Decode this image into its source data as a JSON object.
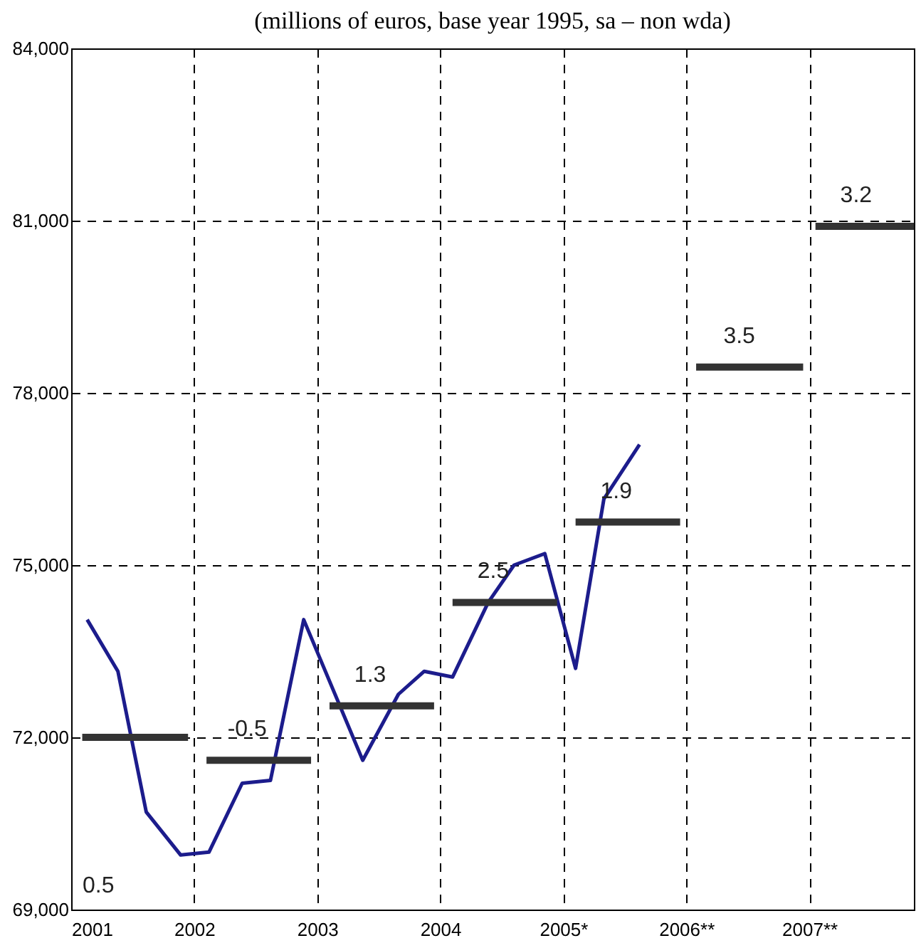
{
  "chart_data": {
    "type": "line",
    "title": "(millions of euros, base year 1995, sa – non wda)",
    "xlim": [
      2001,
      2007.85
    ],
    "xticks": [
      {
        "value": 2001,
        "label": "2001"
      },
      {
        "value": 2002,
        "label": "2002"
      },
      {
        "value": 2003,
        "label": "2003"
      },
      {
        "value": 2004,
        "label": "2004"
      },
      {
        "value": 2005,
        "label": "2005*"
      },
      {
        "value": 2006,
        "label": "2006**"
      },
      {
        "value": 2007,
        "label": "2007**"
      }
    ],
    "ylim": [
      69000,
      84000
    ],
    "yticks": [
      {
        "value": 69000,
        "label": "69,000"
      },
      {
        "value": 72000,
        "label": "72,000"
      },
      {
        "value": 75000,
        "label": "75,000"
      },
      {
        "value": 78000,
        "label": "78,000"
      },
      {
        "value": 81000,
        "label": "81,000"
      },
      {
        "value": 84000,
        "label": "84,000"
      }
    ],
    "grid": true,
    "marker": "none",
    "series": [
      {
        "color": "#1c1c8c",
        "x": [
          2001.13,
          2001.38,
          2001.61,
          2001.89,
          2002.12,
          2002.39,
          2002.62,
          2002.89,
          2003.37,
          2003.66,
          2003.87,
          2004.1,
          2004.39,
          2004.6,
          2004.85,
          2005.1,
          2005.33,
          2005.62
        ],
        "values": [
          74050,
          73150,
          70700,
          69950,
          70000,
          71200,
          71250,
          74050,
          71600,
          72750,
          73150,
          73050,
          74350,
          75000,
          75200,
          73200,
          76150,
          77100
        ]
      },
      {
        "type": "step",
        "color": "#333333",
        "x": [
          2001.09,
          2001.95,
          2001.98,
          2002.1,
          2002.95,
          2002.98,
          2003.1,
          2003.95,
          2003.98,
          2004.1,
          2004.95,
          2004.98,
          2005.1,
          2005.95,
          2005.98,
          2006.08,
          2006.95,
          2006.98,
          2007.05,
          2007.85
        ],
        "values": [
          72000,
          72000,
          null,
          71600,
          71600,
          null,
          72550,
          72550,
          null,
          74350,
          74350,
          null,
          75750,
          75750,
          null,
          78450,
          78450,
          null,
          80900,
          80900
        ]
      }
    ],
    "annotations": [
      "0.5",
      {
        "text": "-0.5",
        "x": 2002.5,
        "y": 71600
      },
      {
        "text": "1.3",
        "x": 2003.5,
        "y": 72550
      },
      {
        "text": "2.5",
        "x": 2004.5,
        "y": 74350
      },
      {
        "text": "1.9",
        "x": 2005.5,
        "y": 75750
      },
      {
        "text": "3.5",
        "x": 2006.5,
        "y": 78450
      },
      {
        "text": "3.2",
        "x": 2007.45,
        "y": 80900
      }
    ]
  }
}
